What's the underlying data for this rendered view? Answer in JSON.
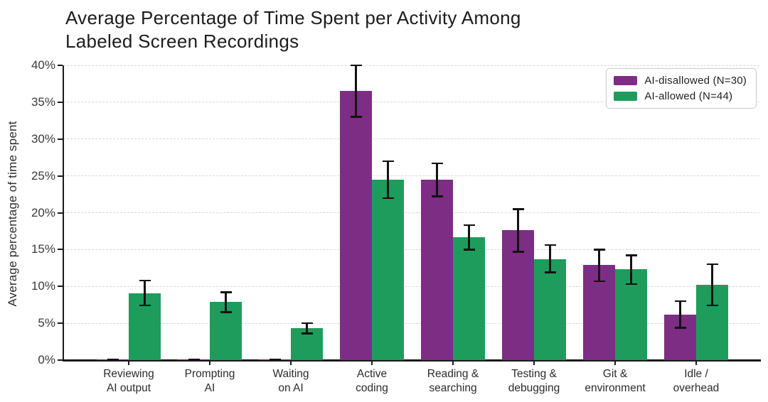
{
  "header": {
    "title_line1": "Average Percentage of Time Spent per Activity Among",
    "title_line2": "Labeled Screen Recordings"
  },
  "colors": {
    "ai_disallowed": "#7d2d84",
    "ai_allowed": "#1e9c5c",
    "error_bar": "#121212",
    "grid": "#d9d9d9",
    "axis": "#1a1a1a"
  },
  "chart_data": {
    "type": "bar",
    "title": "Average Percentage of Time Spent per Activity Among Labeled Screen Recordings",
    "xlabel": "",
    "ylabel": "Average percentage of time spent",
    "ylim": [
      0,
      40
    ],
    "y_tick_step": 5,
    "y_tick_labels": [
      "0%",
      "5%",
      "10%",
      "15%",
      "20%",
      "25%",
      "30%",
      "35%",
      "40%"
    ],
    "grid": "horizontal-dashed",
    "legend_position": "upper-right",
    "categories": [
      "Reviewing AI output",
      "Prompting AI",
      "Waiting on AI",
      "Active coding",
      "Reading & searching",
      "Testing & debugging",
      "Git & environment",
      "Idle / overhead"
    ],
    "category_label_lines": [
      [
        "Reviewing",
        "AI output"
      ],
      [
        "Prompting",
        "AI"
      ],
      [
        "Waiting",
        "on AI"
      ],
      [
        "Active",
        "coding"
      ],
      [
        "Reading &",
        "searching"
      ],
      [
        "Testing &",
        "debugging"
      ],
      [
        "Git &",
        "environment"
      ],
      [
        "Idle /",
        "overhead"
      ]
    ],
    "series": [
      {
        "name": "AI-disallowed (N=30)",
        "color": "#7d2d84",
        "values": [
          0.1,
          0.1,
          0.1,
          36.5,
          24.5,
          17.6,
          12.9,
          6.2
        ],
        "err_lo": [
          0.1,
          0.1,
          0.1,
          33.0,
          22.2,
          14.7,
          10.7,
          4.4
        ],
        "err_hi": [
          0.1,
          0.1,
          0.1,
          40.0,
          26.7,
          20.5,
          15.0,
          8.0
        ]
      },
      {
        "name": "AI-allowed (N=44)",
        "color": "#1e9c5c",
        "values": [
          9.1,
          7.9,
          4.3,
          24.5,
          16.7,
          13.7,
          12.3,
          10.2
        ],
        "err_lo": [
          7.4,
          6.5,
          3.6,
          22.0,
          15.0,
          11.9,
          10.3,
          7.4
        ],
        "err_hi": [
          10.8,
          9.2,
          5.0,
          27.0,
          18.3,
          15.6,
          14.2,
          13.0
        ]
      }
    ]
  }
}
